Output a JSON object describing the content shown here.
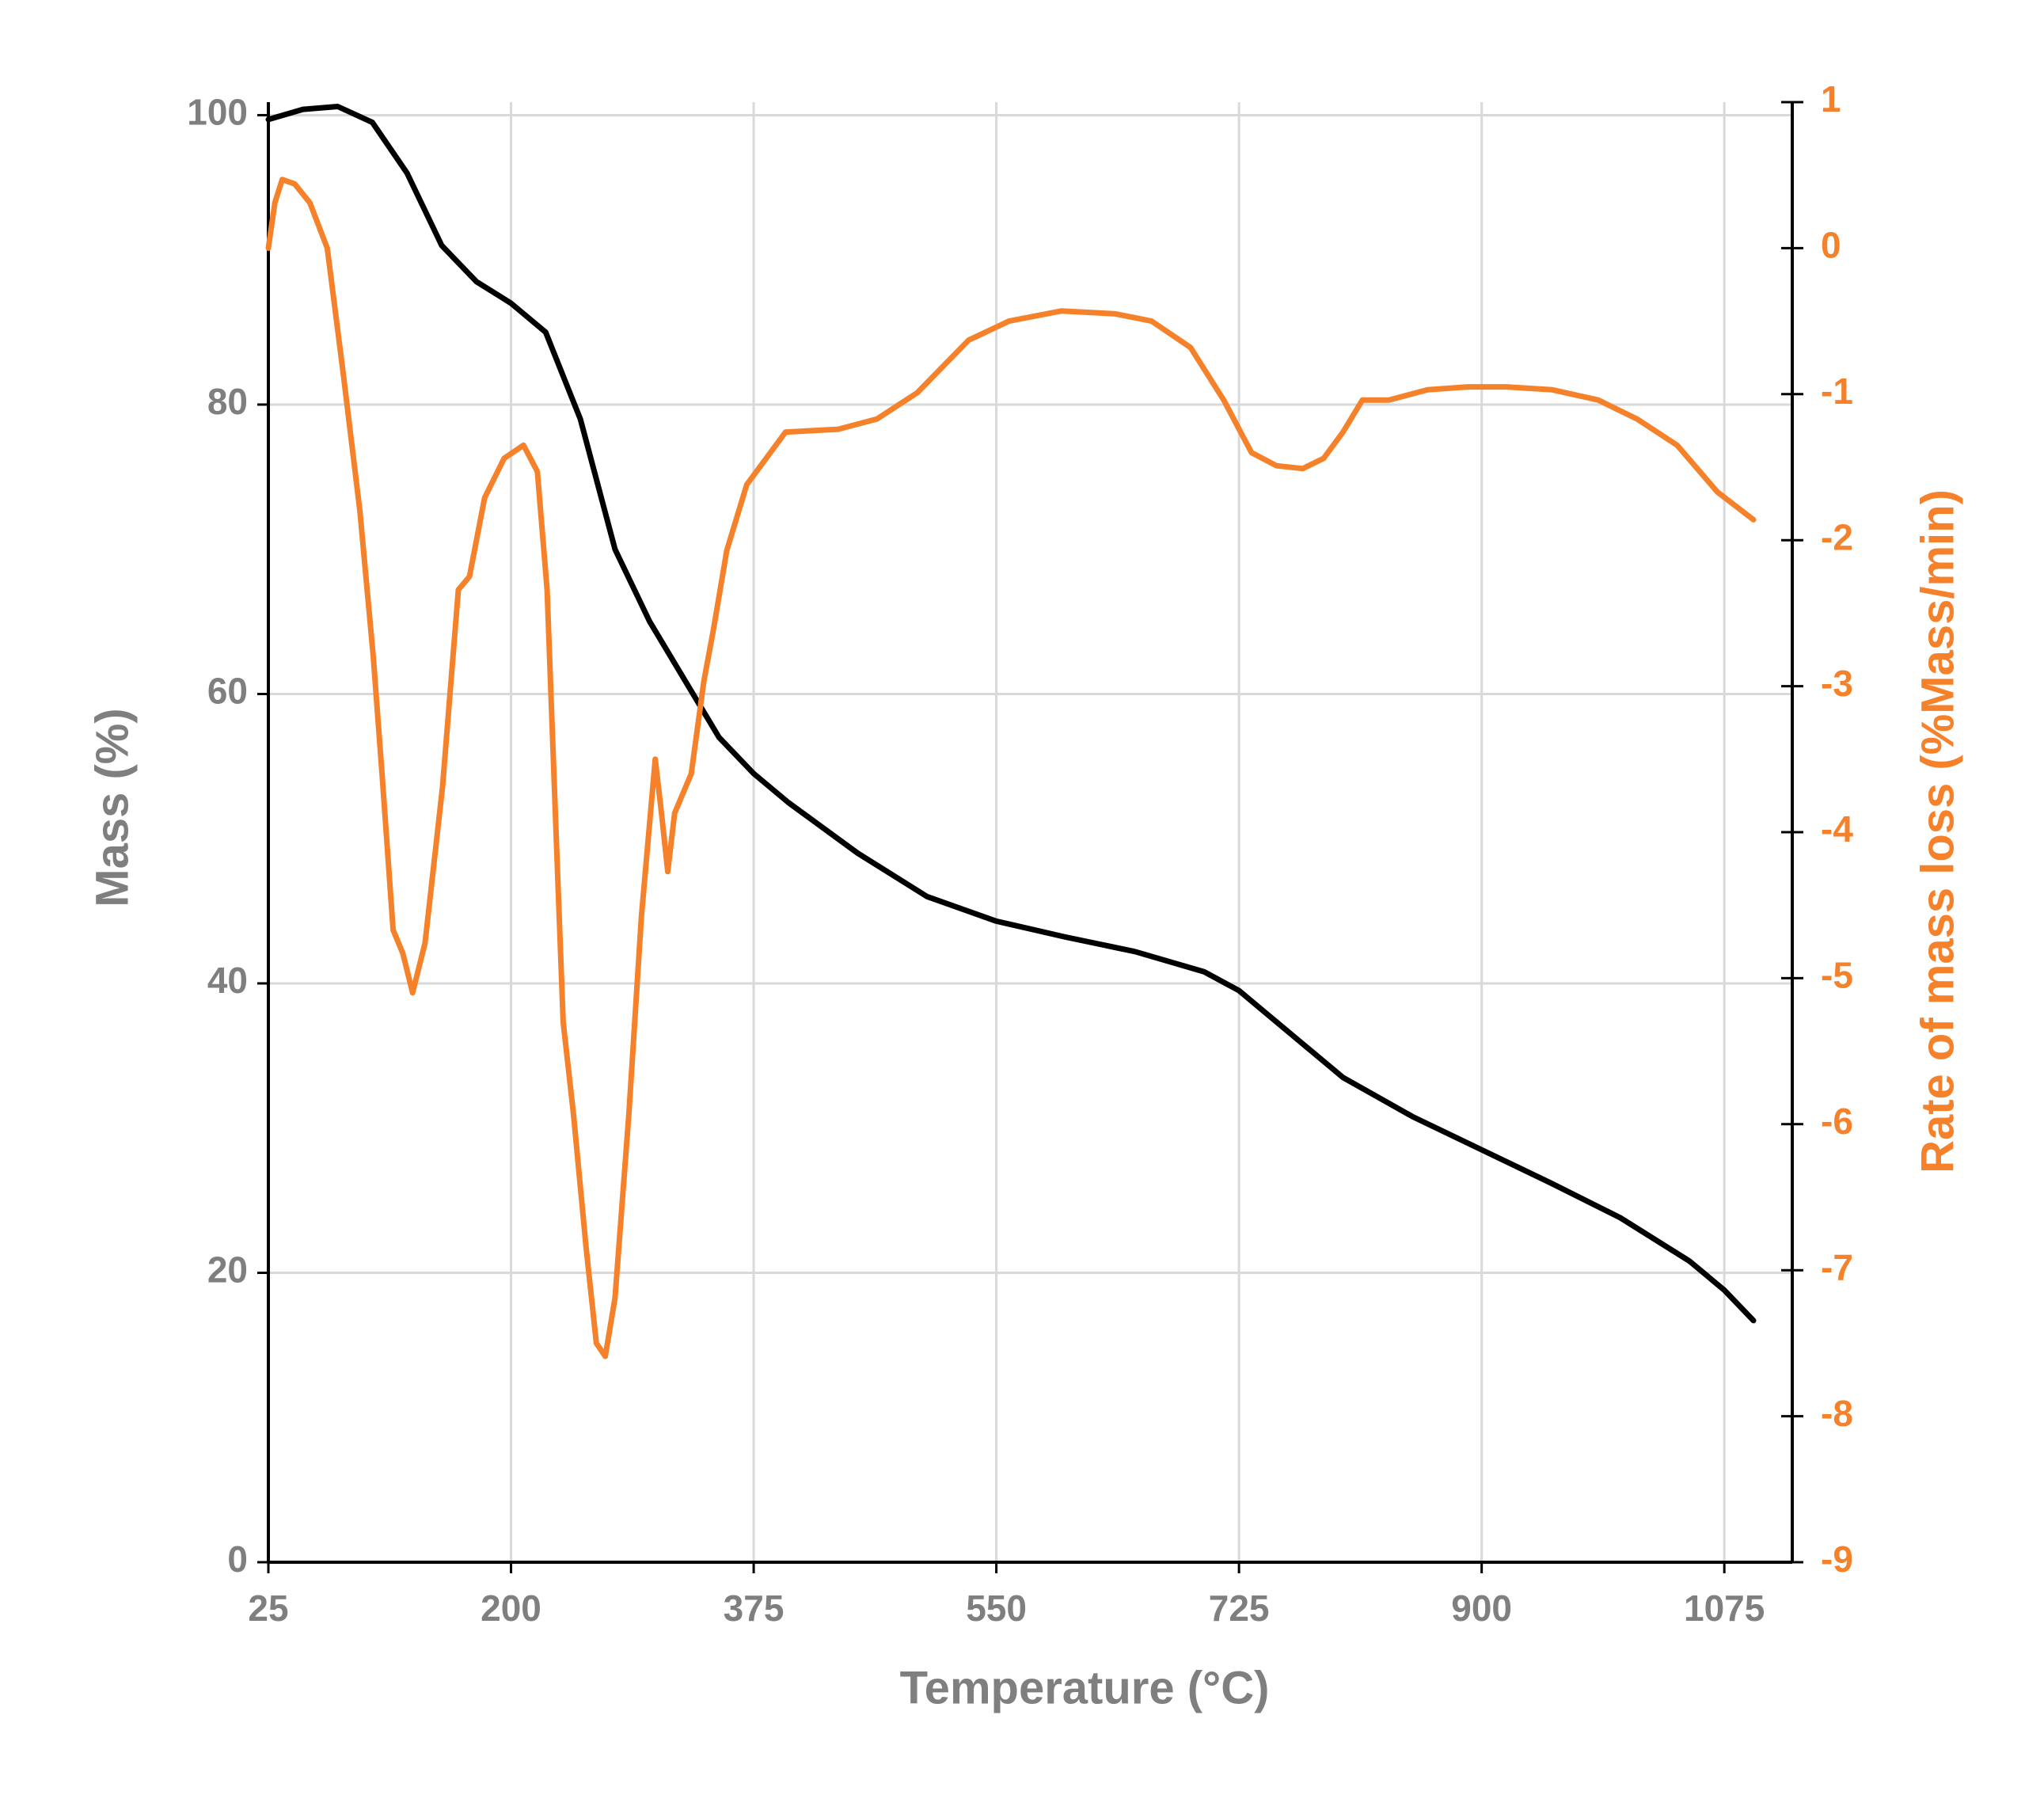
{
  "chart_data": {
    "type": "line",
    "xlabel": "Temperature (°C)",
    "ylabel": "Mass (%)",
    "y2label": "Rate of mass loss (%Mass/min)",
    "xlim": [
      25,
      1124
    ],
    "xticks": [
      25,
      200,
      375,
      550,
      725,
      900,
      1075
    ],
    "ylim": [
      0,
      100.9
    ],
    "yticks": [
      0,
      20,
      40,
      60,
      80,
      100
    ],
    "y2lim": [
      -9,
      1
    ],
    "y2ticks": [
      -9,
      -8,
      -7,
      -6,
      -5,
      -4,
      -3,
      -2,
      -1,
      0,
      1
    ],
    "grid": true,
    "series": [
      {
        "name": "Mass",
        "color": "#000000",
        "x": [
          25,
          50,
          75,
          100,
          125,
          150,
          175,
          200,
          225,
          250,
          275,
          300,
          325,
          350,
          375,
          400,
          450,
          500,
          550,
          600,
          650,
          700,
          725,
          750,
          800,
          850,
          900,
          950,
          1000,
          1050,
          1075,
          1096
        ],
        "values": [
          99.7,
          100.4,
          100.6,
          99.5,
          96,
          91,
          88.5,
          87,
          85,
          79,
          70,
          65,
          61,
          57,
          54.5,
          52.5,
          49,
          46,
          44.3,
          43.2,
          42.2,
          40.8,
          39.5,
          37.5,
          33.5,
          30.8,
          28.5,
          26.2,
          23.8,
          20.8,
          18.8,
          16.7
        ]
      },
      {
        "name": "Rate of mass loss",
        "color": "#f5822a",
        "axis": "y2",
        "x": [
          25,
          29.7,
          35,
          44,
          55,
          67.5,
          79,
          91,
          100.6,
          107,
          115,
          122,
          129,
          138,
          150.6,
          162,
          170,
          181,
          195,
          209,
          219,
          226,
          233,
          237.6,
          245,
          254,
          261.5,
          268,
          275,
          285,
          294,
          304,
          308.5,
          313,
          318,
          330,
          339,
          346,
          355.6,
          370,
          384,
          398,
          436,
          464,
          493,
          530,
          559,
          597,
          636,
          662,
          690,
          714,
          734,
          752,
          771,
          786,
          800,
          814,
          833,
          861,
          890,
          918,
          951,
          984,
          1012,
          1041,
          1070,
          1096
        ],
        "values": [
          0,
          0.31,
          0.47,
          0.44,
          0.31,
          0,
          -0.86,
          -1.8,
          -2.79,
          -3.6,
          -4.67,
          -4.83,
          -5.1,
          -4.76,
          -3.69,
          -2.34,
          -2.25,
          -1.71,
          -1.44,
          -1.35,
          -1.53,
          -2.34,
          -4.13,
          -5.3,
          -5.93,
          -6.83,
          -7.5,
          -7.59,
          -7.19,
          -5.93,
          -4.58,
          -3.5,
          -3.87,
          -4.27,
          -3.87,
          -3.6,
          -2.97,
          -2.61,
          -2.07,
          -1.62,
          -1.44,
          -1.26,
          -1.24,
          -1.17,
          -0.99,
          -0.63,
          -0.5,
          -0.43,
          -0.45,
          -0.5,
          -0.68,
          -1.04,
          -1.4,
          -1.49,
          -1.51,
          -1.44,
          -1.26,
          -1.04,
          -1.04,
          -0.97,
          -0.95,
          -0.95,
          -0.97,
          -1.04,
          -1.17,
          -1.35,
          -1.67,
          -1.86
        ]
      }
    ]
  }
}
